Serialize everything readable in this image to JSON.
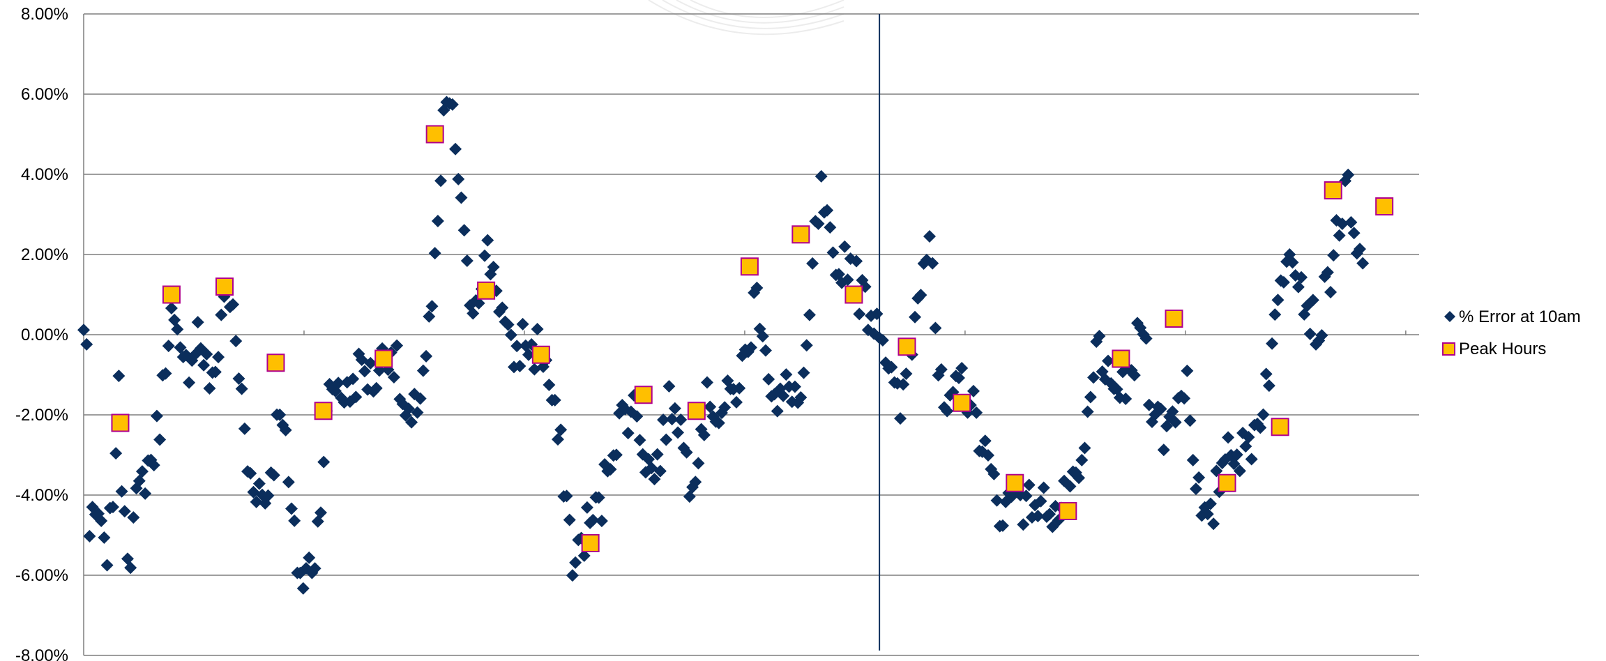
{
  "chart_data": {
    "type": "scatter",
    "title": "",
    "xlabel": "",
    "ylabel": "",
    "ylim": [
      -0.08,
      0.08
    ],
    "xlim": [
      0,
      730
    ],
    "y_ticks": [
      {
        "value": 0.08,
        "label": "8.00%"
      },
      {
        "value": 0.06,
        "label": "6.00%"
      },
      {
        "value": 0.04,
        "label": "4.00%"
      },
      {
        "value": 0.02,
        "label": "2.00%"
      },
      {
        "value": 0.0,
        "label": "0.00%"
      },
      {
        "value": -0.02,
        "label": "-2.00%"
      },
      {
        "value": -0.04,
        "label": "-4.00%"
      },
      {
        "value": -0.06,
        "label": "-6.00%"
      },
      {
        "value": -0.08,
        "label": "-8.00%"
      }
    ],
    "grid": true,
    "legend_position": "right",
    "marker_line_x": 435,
    "colors": {
      "error_marker": "#0b2e5c",
      "peak_fill": "#ffbf00",
      "peak_edge": "#b0008c",
      "grid": "#7f7f7f",
      "marker_line": "#0b2e5c"
    },
    "series": [
      {
        "name": "% Error at 10am",
        "marker": "diamond",
        "knots": [
          [
            0,
            0.0
          ],
          [
            2,
            0.0
          ],
          [
            3,
            -0.051
          ],
          [
            8,
            -0.045
          ],
          [
            11,
            -0.056
          ],
          [
            15,
            -0.048
          ],
          [
            19,
            -0.014
          ],
          [
            21,
            -0.036
          ],
          [
            25,
            -0.055
          ],
          [
            28,
            -0.045
          ],
          [
            33,
            -0.035
          ],
          [
            38,
            -0.03
          ],
          [
            42,
            -0.02
          ],
          [
            47,
            0.006
          ],
          [
            50,
            0.0
          ],
          [
            54,
            -0.01
          ],
          [
            59,
            -0.005
          ],
          [
            62,
            0.002
          ],
          [
            67,
            -0.008
          ],
          [
            71,
            -0.015
          ],
          [
            75,
            0.005
          ],
          [
            79,
            0.013
          ],
          [
            82,
            0.002
          ],
          [
            86,
            -0.014
          ],
          [
            90,
            -0.035
          ],
          [
            95,
            -0.037
          ],
          [
            99,
            -0.042
          ],
          [
            104,
            -0.03
          ],
          [
            108,
            -0.013
          ],
          [
            112,
            -0.038
          ],
          [
            116,
            -0.055
          ],
          [
            120,
            -0.062
          ],
          [
            123,
            -0.058
          ],
          [
            127,
            -0.054
          ],
          [
            131,
            -0.03
          ],
          [
            135,
            -0.013
          ],
          [
            140,
            -0.012
          ],
          [
            144,
            -0.016
          ],
          [
            149,
            -0.01
          ],
          [
            153,
            -0.008
          ],
          [
            158,
            -0.012
          ],
          [
            163,
            -0.007
          ],
          [
            167,
            -0.002
          ],
          [
            171,
            -0.008
          ],
          [
            175,
            -0.02
          ],
          [
            179,
            -0.025
          ],
          [
            183,
            -0.015
          ],
          [
            186,
            -0.008
          ],
          [
            190,
            0.005
          ],
          [
            193,
            0.02
          ],
          [
            196,
            0.045
          ],
          [
            198,
            0.06
          ],
          [
            201,
            0.055
          ],
          [
            205,
            0.04
          ],
          [
            209,
            0.015
          ],
          [
            213,
            0.008
          ],
          [
            217,
            0.015
          ],
          [
            221,
            0.02
          ],
          [
            225,
            0.015
          ],
          [
            229,
            0.005
          ],
          [
            233,
            -0.005
          ],
          [
            237,
            -0.005
          ],
          [
            241,
            0.0
          ],
          [
            245,
            -0.005
          ],
          [
            249,
            -0.002
          ],
          [
            253,
            -0.008
          ],
          [
            257,
            -0.02
          ],
          [
            261,
            -0.03
          ],
          [
            265,
            -0.045
          ],
          [
            268,
            -0.06
          ],
          [
            271,
            -0.053
          ],
          [
            275,
            -0.048
          ],
          [
            279,
            -0.045
          ],
          [
            283,
            -0.043
          ],
          [
            287,
            -0.03
          ],
          [
            291,
            -0.025
          ],
          [
            295,
            -0.02
          ],
          [
            299,
            -0.018
          ],
          [
            303,
            -0.02
          ],
          [
            307,
            -0.03
          ],
          [
            311,
            -0.035
          ],
          [
            315,
            -0.03
          ],
          [
            319,
            -0.02
          ],
          [
            323,
            -0.015
          ],
          [
            327,
            -0.025
          ],
          [
            331,
            -0.035
          ],
          [
            335,
            -0.03
          ],
          [
            339,
            -0.02
          ],
          [
            343,
            -0.015
          ],
          [
            347,
            -0.02
          ],
          [
            351,
            -0.018
          ],
          [
            355,
            -0.015
          ],
          [
            359,
            -0.01
          ],
          [
            363,
            -0.005
          ],
          [
            367,
            0.01
          ],
          [
            371,
            0.005
          ],
          [
            375,
            -0.01
          ],
          [
            379,
            -0.02
          ],
          [
            383,
            -0.015
          ],
          [
            387,
            -0.012
          ],
          [
            391,
            -0.018
          ],
          [
            395,
            -0.01
          ],
          [
            399,
            0.02
          ],
          [
            403,
            0.035
          ],
          [
            407,
            0.025
          ],
          [
            411,
            0.01
          ],
          [
            415,
            0.02
          ],
          [
            419,
            0.018
          ],
          [
            423,
            0.012
          ],
          [
            427,
            0.008
          ],
          [
            431,
            0.005
          ],
          [
            435,
            0.005
          ],
          [
            439,
            -0.005
          ],
          [
            443,
            -0.015
          ],
          [
            447,
            -0.02
          ],
          [
            451,
            -0.005
          ],
          [
            455,
            0.005
          ],
          [
            459,
            0.02
          ],
          [
            463,
            0.03
          ],
          [
            467,
            -0.01
          ],
          [
            471,
            -0.02
          ],
          [
            475,
            -0.02
          ],
          [
            479,
            -0.01
          ],
          [
            483,
            -0.015
          ],
          [
            487,
            -0.02
          ],
          [
            491,
            -0.025
          ],
          [
            495,
            -0.035
          ],
          [
            499,
            -0.04
          ],
          [
            503,
            -0.045
          ],
          [
            507,
            -0.04
          ],
          [
            511,
            -0.035
          ],
          [
            515,
            -0.045
          ],
          [
            519,
            -0.04
          ],
          [
            523,
            -0.045
          ],
          [
            527,
            -0.04
          ],
          [
            531,
            -0.045
          ],
          [
            535,
            -0.043
          ],
          [
            539,
            -0.04
          ],
          [
            543,
            -0.04
          ],
          [
            547,
            -0.03
          ],
          [
            551,
            -0.015
          ],
          [
            555,
            0.0
          ],
          [
            559,
            -0.01
          ],
          [
            563,
            -0.02
          ],
          [
            567,
            -0.01
          ],
          [
            571,
            -0.015
          ],
          [
            575,
            -0.005
          ],
          [
            579,
            0.005
          ],
          [
            583,
            -0.015
          ],
          [
            587,
            -0.02
          ],
          [
            591,
            -0.025
          ],
          [
            595,
            -0.02
          ],
          [
            599,
            -0.015
          ],
          [
            603,
            -0.01
          ],
          [
            607,
            -0.03
          ],
          [
            611,
            -0.045
          ],
          [
            615,
            -0.05
          ],
          [
            619,
            -0.04
          ],
          [
            623,
            -0.03
          ],
          [
            627,
            -0.025
          ],
          [
            631,
            -0.03
          ],
          [
            635,
            -0.03
          ],
          [
            639,
            -0.025
          ],
          [
            643,
            -0.02
          ],
          [
            647,
            -0.01
          ],
          [
            651,
            0.0
          ],
          [
            655,
            0.015
          ],
          [
            659,
            0.025
          ],
          [
            663,
            0.02
          ],
          [
            667,
            0.01
          ],
          [
            671,
            0.005
          ],
          [
            675,
            0.0
          ],
          [
            679,
            0.01
          ],
          [
            683,
            0.02
          ],
          [
            687,
            0.03
          ],
          [
            691,
            0.035
          ],
          [
            695,
            0.02
          ],
          [
            700,
            0.015
          ]
        ],
        "note_unlabeled_scatter": "approximately 440 daily points following the curve above"
      },
      {
        "name": "Peak Hours",
        "marker": "square",
        "points": [
          [
            20,
            -0.022
          ],
          [
            48,
            0.01
          ],
          [
            77,
            0.012
          ],
          [
            105,
            -0.007
          ],
          [
            131,
            -0.019
          ],
          [
            164,
            -0.006
          ],
          [
            192,
            0.05
          ],
          [
            220,
            0.011
          ],
          [
            250,
            -0.005
          ],
          [
            277,
            -0.052
          ],
          [
            306,
            -0.015
          ],
          [
            335,
            -0.019
          ],
          [
            364,
            0.017
          ],
          [
            392,
            0.025
          ],
          [
            421,
            0.01
          ],
          [
            450,
            -0.003
          ],
          [
            480,
            -0.017
          ],
          [
            509,
            -0.037
          ],
          [
            538,
            -0.044
          ],
          [
            567,
            -0.006
          ],
          [
            596,
            0.004
          ],
          [
            625,
            -0.037
          ],
          [
            654,
            -0.023
          ],
          [
            683,
            0.036
          ],
          [
            711,
            0.032
          ]
        ]
      }
    ]
  }
}
